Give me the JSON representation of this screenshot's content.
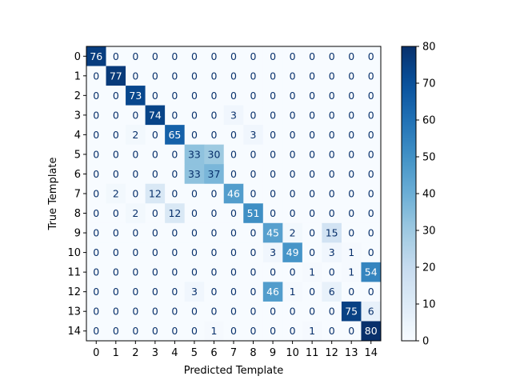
{
  "chart_data": {
    "type": "heatmap",
    "title": "",
    "xlabel": "Predicted Template",
    "ylabel": "True Template",
    "x_categories": [
      "0",
      "1",
      "2",
      "3",
      "4",
      "5",
      "6",
      "7",
      "8",
      "9",
      "10",
      "11",
      "12",
      "13",
      "14"
    ],
    "y_categories": [
      "0",
      "1",
      "2",
      "3",
      "4",
      "5",
      "6",
      "7",
      "8",
      "9",
      "10",
      "11",
      "12",
      "13",
      "14"
    ],
    "values": [
      [
        76,
        0,
        0,
        0,
        0,
        0,
        0,
        0,
        0,
        0,
        0,
        0,
        0,
        0,
        0
      ],
      [
        0,
        77,
        0,
        0,
        0,
        0,
        0,
        0,
        0,
        0,
        0,
        0,
        0,
        0,
        0
      ],
      [
        0,
        0,
        73,
        0,
        0,
        0,
        0,
        0,
        0,
        0,
        0,
        0,
        0,
        0,
        0
      ],
      [
        0,
        0,
        0,
        74,
        0,
        0,
        0,
        3,
        0,
        0,
        0,
        0,
        0,
        0,
        0
      ],
      [
        0,
        0,
        2,
        0,
        65,
        0,
        0,
        0,
        3,
        0,
        0,
        0,
        0,
        0,
        0
      ],
      [
        0,
        0,
        0,
        0,
        0,
        33,
        30,
        0,
        0,
        0,
        0,
        0,
        0,
        0,
        0
      ],
      [
        0,
        0,
        0,
        0,
        0,
        33,
        37,
        0,
        0,
        0,
        0,
        0,
        0,
        0,
        0
      ],
      [
        0,
        2,
        0,
        12,
        0,
        0,
        0,
        46,
        0,
        0,
        0,
        0,
        0,
        0,
        0
      ],
      [
        0,
        0,
        2,
        0,
        12,
        0,
        0,
        0,
        51,
        0,
        0,
        0,
        0,
        0,
        0
      ],
      [
        0,
        0,
        0,
        0,
        0,
        0,
        0,
        0,
        0,
        45,
        2,
        0,
        15,
        0,
        0
      ],
      [
        0,
        0,
        0,
        0,
        0,
        0,
        0,
        0,
        0,
        3,
        49,
        0,
        3,
        1,
        0
      ],
      [
        0,
        0,
        0,
        0,
        0,
        0,
        0,
        0,
        0,
        0,
        0,
        1,
        0,
        1,
        54
      ],
      [
        0,
        0,
        0,
        0,
        0,
        3,
        0,
        0,
        0,
        46,
        1,
        0,
        6,
        0,
        0
      ],
      [
        0,
        0,
        0,
        0,
        0,
        0,
        0,
        0,
        0,
        0,
        0,
        0,
        0,
        75,
        6
      ],
      [
        0,
        0,
        0,
        0,
        0,
        0,
        1,
        0,
        0,
        0,
        0,
        1,
        0,
        0,
        80
      ]
    ],
    "colormap": "Blues",
    "color_range": [
      0,
      80
    ],
    "colorbar_ticks": [
      "0",
      "10",
      "20",
      "30",
      "40",
      "50",
      "60",
      "70",
      "80"
    ],
    "grid": false,
    "legend": "colorbar-right"
  }
}
